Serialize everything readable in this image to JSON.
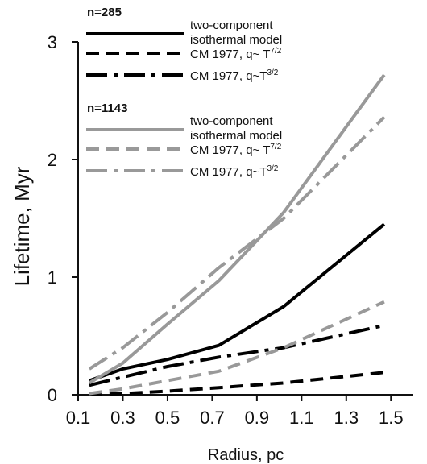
{
  "chart_data": {
    "type": "line",
    "xlabel": "Radius, pc",
    "ylabel": "Lifetime, Myr",
    "xlim": [
      0.1,
      1.6
    ],
    "ylim": [
      0,
      3
    ],
    "xticks": [
      "0.1",
      "0.3",
      "0.5",
      "0.7",
      "0.9",
      "1.1",
      "1.3",
      "1.5"
    ],
    "yticks": [
      "0",
      "1",
      "2",
      "3"
    ],
    "grid": false,
    "legend_position": "top-left",
    "legend_groups": [
      {
        "title": "n=285",
        "color": "#000000"
      },
      {
        "title": "n=1143",
        "color": "#999999"
      }
    ],
    "series": [
      {
        "group": 0,
        "name": "two-component isothermal model",
        "name_line1": "two-component",
        "name_line2": "isothermal model",
        "style": "solid",
        "color": "#000000",
        "x": [
          0.15,
          0.3,
          0.5,
          0.73,
          1.02,
          1.47
        ],
        "y": [
          0.12,
          0.22,
          0.3,
          0.42,
          0.75,
          1.45
        ]
      },
      {
        "group": 0,
        "name": "CM 1977, q~ T7/2",
        "name_base": "CM 1977, q~ T",
        "name_sup": "7/2",
        "style": "dash",
        "color": "#000000",
        "x": [
          0.15,
          0.3,
          0.5,
          0.73,
          1.02,
          1.47
        ],
        "y": [
          0.0,
          0.01,
          0.03,
          0.06,
          0.1,
          0.19
        ]
      },
      {
        "group": 0,
        "name": "CM 1977, q~T3/2",
        "name_base": "CM 1977, q~T",
        "name_sup": "3/2",
        "style": "dashdot",
        "color": "#000000",
        "x": [
          0.15,
          0.3,
          0.5,
          0.73,
          1.02,
          1.47
        ],
        "y": [
          0.08,
          0.15,
          0.24,
          0.32,
          0.4,
          0.59
        ]
      },
      {
        "group": 1,
        "name": "two-component isothermal model",
        "name_line1": "two-component",
        "name_line2": "isothermal model",
        "style": "solid",
        "color": "#999999",
        "x": [
          0.15,
          0.3,
          0.5,
          0.73,
          1.02,
          1.47
        ],
        "y": [
          0.1,
          0.27,
          0.6,
          0.97,
          1.55,
          2.72
        ]
      },
      {
        "group": 1,
        "name": "CM 1977, q~ T7/2",
        "name_base": "CM 1977, q~ T",
        "name_sup": "7/2",
        "style": "dash",
        "color": "#999999",
        "x": [
          0.15,
          0.3,
          0.5,
          0.73,
          1.02,
          1.47
        ],
        "y": [
          0.01,
          0.05,
          0.12,
          0.2,
          0.4,
          0.79
        ]
      },
      {
        "group": 1,
        "name": "CM 1977, q~T3/2",
        "name_base": "CM 1977, q~T",
        "name_sup": "3/2",
        "style": "dashdot",
        "color": "#999999",
        "x": [
          0.15,
          0.3,
          0.5,
          0.73,
          1.02,
          1.47
        ],
        "y": [
          0.22,
          0.4,
          0.7,
          1.08,
          1.5,
          2.36
        ]
      }
    ]
  }
}
